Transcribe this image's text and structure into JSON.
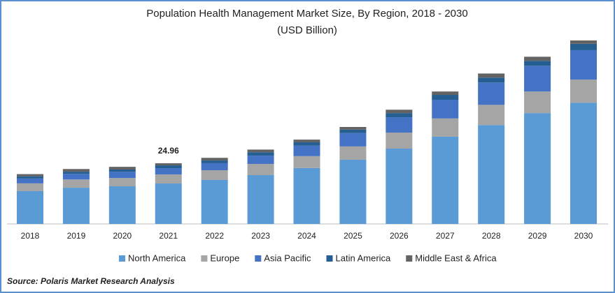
{
  "chart_data": {
    "type": "stacked_bar",
    "title": "Population Health Management Market Size, By Region, 2018 - 2030",
    "subtitle": "(USD Billion)",
    "categories": [
      "2018",
      "2019",
      "2020",
      "2021",
      "2022",
      "2023",
      "2024",
      "2025",
      "2026",
      "2027",
      "2028",
      "2029",
      "2030"
    ],
    "series": [
      {
        "name": "North America",
        "color": "#5b9bd5",
        "values": [
          13.5,
          14.9,
          15.5,
          16.64,
          18.1,
          20.1,
          23.0,
          26.4,
          31.0,
          35.9,
          40.7,
          45.6,
          49.9
        ]
      },
      {
        "name": "Europe",
        "color": "#a5a5a5",
        "values": [
          3.2,
          3.4,
          3.4,
          3.73,
          4.0,
          4.6,
          4.9,
          5.5,
          6.6,
          7.5,
          8.3,
          8.9,
          9.5
        ]
      },
      {
        "name": "Asia Pacific",
        "color": "#4472c4",
        "values": [
          2.0,
          2.3,
          2.6,
          2.58,
          2.9,
          3.4,
          4.3,
          5.5,
          6.3,
          7.7,
          9.2,
          10.6,
          12.1
        ]
      },
      {
        "name": "Latin America",
        "color": "#255e91",
        "values": [
          0.9,
          0.9,
          0.9,
          1.15,
          1.1,
          1.4,
          1.4,
          1.4,
          1.7,
          2.0,
          2.0,
          2.0,
          2.6
        ]
      },
      {
        "name": "Middle East & Africa",
        "color": "#636363",
        "values": [
          0.9,
          1.1,
          1.1,
          0.86,
          1.1,
          1.1,
          1.1,
          1.1,
          1.4,
          1.4,
          1.7,
          1.7,
          1.4
        ]
      }
    ],
    "annotations": [
      {
        "x": "2021",
        "value": 24.96
      }
    ],
    "source": "Source: Polaris Market Research Analysis"
  }
}
